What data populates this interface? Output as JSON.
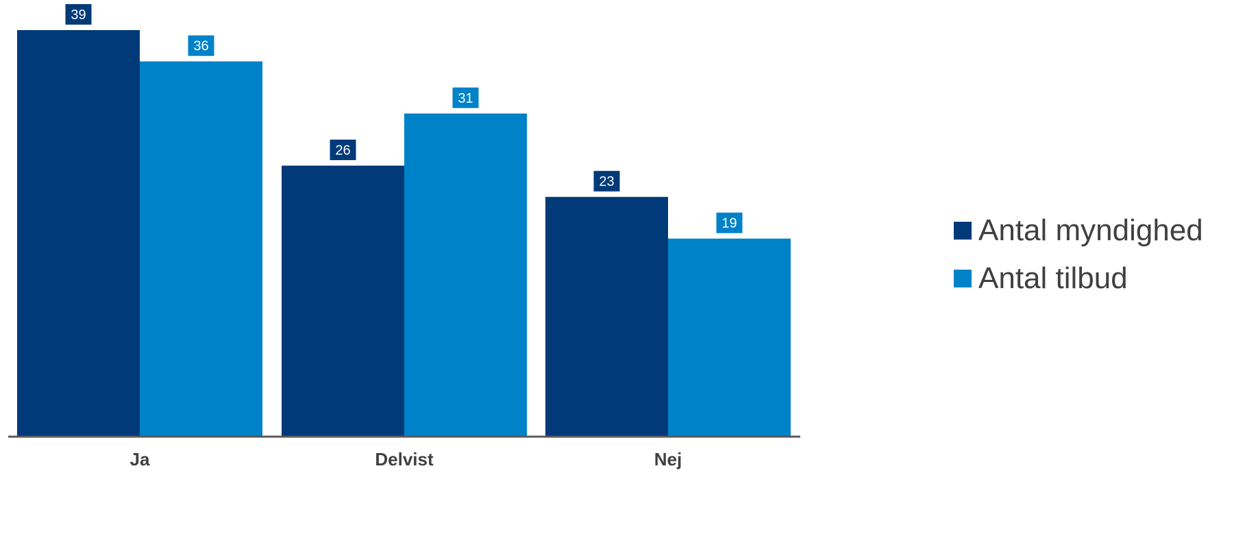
{
  "chart_data": {
    "type": "bar",
    "categories": [
      "Ja",
      "Delvist",
      "Nej"
    ],
    "series": [
      {
        "name": "Antal myndighed",
        "values": [
          39,
          26,
          23
        ],
        "color": "#003a78"
      },
      {
        "name": "Antal tilbud",
        "values": [
          36,
          31,
          19
        ],
        "color": "#0082c8"
      }
    ],
    "ylim": [
      0,
      39
    ],
    "grid": false,
    "legend_position": "right",
    "data_labels": true,
    "axis_color": "#595959",
    "category_label_color": "#404040"
  }
}
